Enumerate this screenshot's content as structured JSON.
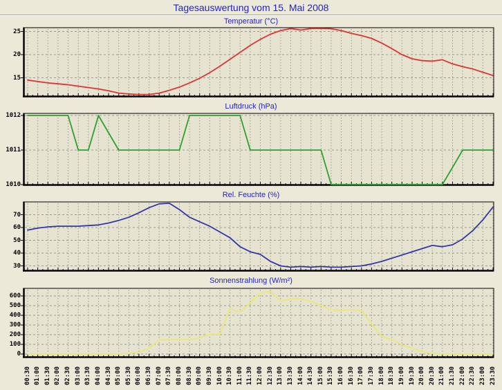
{
  "page": {
    "title": "Tagesauswertung vom 15. Mai 2008"
  },
  "colors": {
    "background": "#ece9d8",
    "plot_background": "#e6e3d0",
    "grid": "#9a9a8c",
    "frame": "#000000",
    "heading": "#2222cc",
    "temperature_line": "#dd3333",
    "pressure_line": "#2ea02e",
    "humidity_line": "#3434aa",
    "solar_line": "#e8e878"
  },
  "chart_data": {
    "type": "line",
    "grid": true,
    "legend_position": "none",
    "categories": [
      "00:30",
      "01:00",
      "01:30",
      "02:00",
      "02:30",
      "03:00",
      "03:30",
      "04:00",
      "04:30",
      "05:00",
      "05:30",
      "06:00",
      "06:30",
      "07:00",
      "07:30",
      "08:00",
      "08:30",
      "09:00",
      "09:30",
      "10:00",
      "10:30",
      "11:00",
      "11:30",
      "12:00",
      "12:30",
      "13:00",
      "13:30",
      "14:00",
      "14:30",
      "15:00",
      "15:30",
      "16:00",
      "16:30",
      "17:00",
      "17:30",
      "18:00",
      "18:30",
      "19:00",
      "19:30",
      "20:00",
      "20:30",
      "21:00",
      "21:30",
      "22:00",
      "22:30",
      "23:00",
      "23:30"
    ],
    "charts": [
      {
        "id": "temperatur",
        "title": "Temperatur (°C)",
        "color": "#dd3333",
        "yticks": [
          15,
          20,
          25
        ],
        "ylim": [
          10.9,
          25.9
        ],
        "values": [
          14.5,
          14.2,
          13.9,
          13.7,
          13.5,
          13.2,
          12.9,
          12.6,
          12.2,
          11.7,
          11.5,
          11.4,
          11.4,
          11.7,
          12.3,
          13.0,
          13.9,
          14.9,
          16.1,
          17.5,
          19.0,
          20.5,
          22.0,
          23.3,
          24.4,
          25.2,
          25.7,
          25.3,
          25.8,
          25.9,
          25.6,
          25.2,
          24.6,
          24.1,
          23.5,
          22.5,
          21.3,
          20.0,
          19.1,
          18.7,
          18.6,
          18.9,
          18.0,
          17.4,
          16.9,
          16.2,
          15.5
        ]
      },
      {
        "id": "luftdruck",
        "title": "Luftdruck (hPa)",
        "color": "#2ea02e",
        "yticks": [
          1010,
          1011,
          1012
        ],
        "ylim": [
          1010,
          1012
        ],
        "values": [
          1012,
          1012,
          1012,
          1012,
          1012,
          1011,
          1011,
          1012,
          1011.5,
          1011,
          1011,
          1011,
          1011,
          1011,
          1011,
          1011,
          1012,
          1012,
          1012,
          1012,
          1012,
          1012,
          1011,
          1011,
          1011,
          1011,
          1011,
          1011,
          1011,
          1011,
          1010,
          1010,
          1010,
          1010,
          1010,
          1010,
          1010,
          1010,
          1010,
          1010,
          1010,
          1010,
          1010.5,
          1011,
          1011,
          1011,
          1011
        ]
      },
      {
        "id": "rel-feuchte",
        "title": "Rel. Feuchte (%)",
        "color": "#3434aa",
        "yticks": [
          30,
          40,
          50,
          60,
          70
        ],
        "ylim": [
          26,
          80
        ],
        "values": [
          58,
          59.5,
          60.5,
          61,
          61,
          61,
          61.5,
          62,
          63.5,
          65.5,
          68,
          71.5,
          75.5,
          78.5,
          79,
          74,
          68,
          64.5,
          61,
          56.5,
          52,
          45,
          41,
          39,
          33.5,
          30,
          29,
          29.5,
          29,
          29.5,
          29,
          29,
          29.5,
          30,
          31.5,
          33.5,
          36,
          38.5,
          41,
          43.5,
          46,
          45,
          46.5,
          51,
          57.5,
          66,
          76
        ]
      },
      {
        "id": "sonnenstrahlung",
        "title": "Sonnenstrahlung (W/m²)",
        "color": "#e8e878",
        "yticks": [
          0,
          100,
          200,
          300,
          400,
          500,
          600
        ],
        "ylim": [
          0,
          660
        ],
        "values": [
          0,
          0,
          0,
          0,
          0,
          0,
          0,
          0,
          0,
          0,
          5,
          20,
          60,
          145,
          150,
          150,
          150,
          165,
          205,
          205,
          470,
          430,
          530,
          630,
          645,
          545,
          570,
          570,
          545,
          500,
          460,
          450,
          460,
          450,
          310,
          180,
          150,
          95,
          60,
          25,
          5,
          0,
          0,
          0,
          0,
          0,
          0
        ]
      }
    ]
  }
}
